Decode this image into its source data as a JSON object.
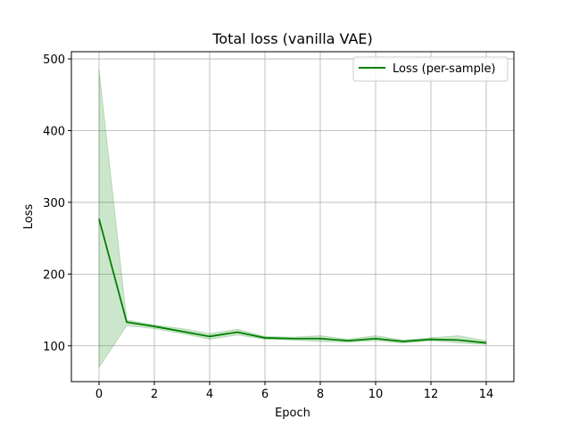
{
  "chart_data": {
    "type": "line",
    "title": "Total loss (vanilla VAE)",
    "xlabel": "Epoch",
    "ylabel": "Loss",
    "xlim": [
      -1,
      15
    ],
    "ylim": [
      50,
      510
    ],
    "xticks": [
      0,
      2,
      4,
      6,
      8,
      10,
      12,
      14
    ],
    "yticks": [
      100,
      200,
      300,
      400,
      500
    ],
    "grid": true,
    "legend_position": "top-right",
    "series": [
      {
        "name": "Loss (per-sample)",
        "color": "#008000",
        "x": [
          0,
          1,
          2,
          3,
          4,
          5,
          6,
          7,
          8,
          9,
          10,
          11,
          12,
          13,
          14
        ],
        "values": [
          277,
          133,
          127,
          120,
          113,
          119,
          111,
          110,
          110,
          107,
          110,
          106,
          109,
          108,
          104
        ],
        "lower": [
          70,
          128,
          124,
          117,
          109,
          115,
          109,
          108,
          106,
          105,
          107,
          104,
          107,
          104,
          102
        ],
        "upper": [
          485,
          136,
          129,
          124,
          117,
          123,
          113,
          112,
          114,
          109,
          114,
          108,
          111,
          114,
          107
        ],
        "band_color": "#008000",
        "band_opacity": 0.2
      }
    ]
  }
}
